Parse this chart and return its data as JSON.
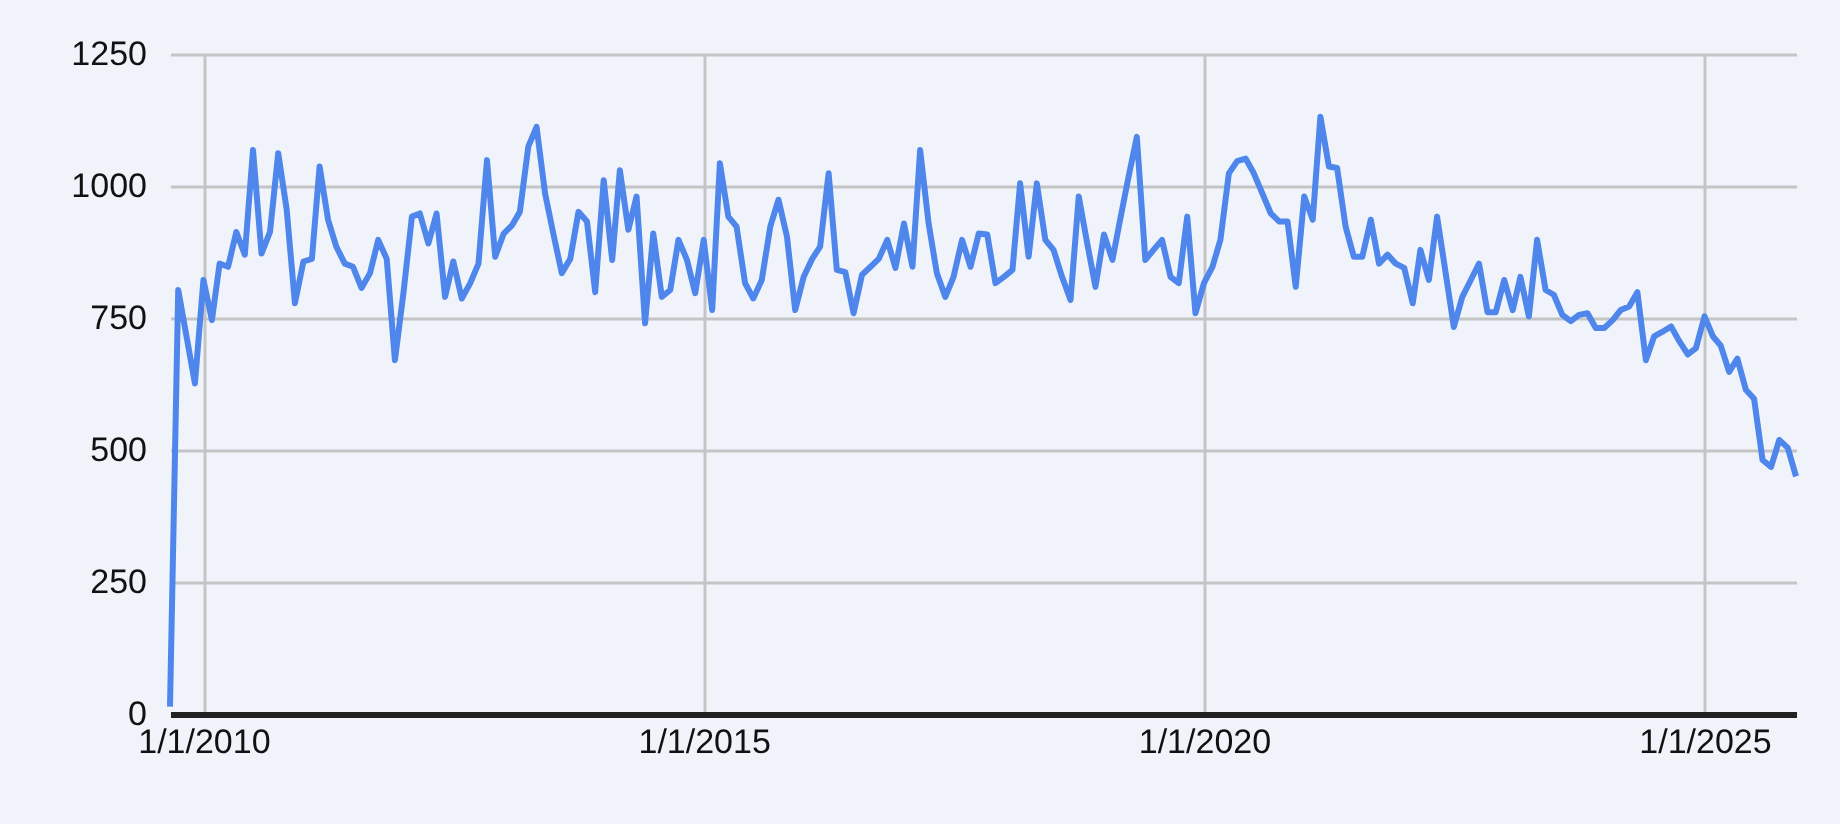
{
  "chart_data": {
    "type": "line",
    "x": [
      "2009-09",
      "2009-10",
      "2009-12",
      "2010-01",
      "2010-02",
      "2010-03",
      "2010-04",
      "2010-05",
      "2010-06",
      "2010-07",
      "2010-08",
      "2010-09",
      "2010-10",
      "2010-11",
      "2010-12",
      "2011-01",
      "2011-02",
      "2011-03",
      "2011-04",
      "2011-05",
      "2011-06",
      "2011-07",
      "2011-08",
      "2011-09",
      "2011-10",
      "2011-11",
      "2011-12",
      "2012-01",
      "2012-02",
      "2012-03",
      "2012-04",
      "2012-05",
      "2012-06",
      "2012-07",
      "2012-08",
      "2012-09",
      "2012-10",
      "2012-11",
      "2012-12",
      "2013-01",
      "2013-02",
      "2013-03",
      "2013-04",
      "2013-05",
      "2013-06",
      "2013-07",
      "2013-08",
      "2013-09",
      "2013-10",
      "2013-11",
      "2013-12",
      "2014-01",
      "2014-02",
      "2014-03",
      "2014-04",
      "2014-05",
      "2014-06",
      "2014-07",
      "2014-08",
      "2014-09",
      "2014-10",
      "2014-11",
      "2014-12",
      "2015-01",
      "2015-02",
      "2015-03",
      "2015-04",
      "2015-05",
      "2015-06",
      "2015-07",
      "2015-08",
      "2015-09",
      "2015-10",
      "2015-11",
      "2015-12",
      "2016-01",
      "2016-02",
      "2016-03",
      "2016-04",
      "2016-05",
      "2016-06",
      "2016-07",
      "2016-08",
      "2016-09",
      "2016-10",
      "2016-11",
      "2016-12",
      "2017-01",
      "2017-02",
      "2017-03",
      "2017-04",
      "2017-05",
      "2017-06",
      "2017-07",
      "2017-08",
      "2017-09",
      "2017-10",
      "2017-11",
      "2017-12",
      "2018-01",
      "2018-02",
      "2018-03",
      "2018-04",
      "2018-05",
      "2018-06",
      "2018-07",
      "2018-08",
      "2018-09",
      "2018-10",
      "2018-11",
      "2018-12",
      "2019-01",
      "2019-02",
      "2019-03",
      "2019-04",
      "2019-05",
      "2019-06",
      "2019-07",
      "2019-08",
      "2019-09",
      "2019-10",
      "2019-11",
      "2019-12",
      "2020-01",
      "2020-02",
      "2020-03",
      "2020-04",
      "2020-05",
      "2020-06",
      "2020-07",
      "2020-08",
      "2020-09",
      "2020-10",
      "2020-11",
      "2020-12",
      "2021-01",
      "2021-02",
      "2021-03",
      "2021-04",
      "2021-05",
      "2021-06",
      "2021-07",
      "2021-08",
      "2021-09",
      "2021-10",
      "2021-11",
      "2021-12",
      "2022-01",
      "2022-02",
      "2022-03",
      "2022-04",
      "2022-05",
      "2022-07",
      "2022-08",
      "2022-09",
      "2022-10",
      "2022-11",
      "2022-12",
      "2023-01",
      "2023-02",
      "2023-03",
      "2023-04",
      "2023-05",
      "2023-06",
      "2023-07",
      "2023-08",
      "2023-09",
      "2023-10",
      "2023-11",
      "2023-12",
      "2024-01",
      "2024-02",
      "2024-03",
      "2024-04",
      "2024-05",
      "2024-06",
      "2024-07",
      "2024-08",
      "2024-09",
      "2024-10",
      "2024-11",
      "2024-12",
      "2025-01",
      "2025-02",
      "2025-03",
      "2025-04",
      "2025-05",
      "2025-06",
      "2025-07",
      "2025-08",
      "2025-09",
      "2025-10",
      "2025-11",
      "2025-12"
    ],
    "series": [
      {
        "color": "#4f86ec",
        "values": [
          14,
          803,
          626,
          822,
          746,
          853,
          847,
          913,
          870,
          1068,
          872,
          913,
          1062,
          955,
          778,
          857,
          862,
          1037,
          936,
          885,
          853,
          847,
          807,
          835,
          898,
          862,
          670,
          797,
          942,
          948,
          891,
          948,
          790,
          857,
          787,
          816,
          853,
          1049,
          866,
          910,
          926,
          951,
          1075,
          1112,
          986,
          910,
          835,
          862,
          951,
          933,
          799,
          1011,
          860,
          1030,
          917,
          980,
          740,
          910,
          790,
          803,
          898,
          860,
          797,
          898,
          765,
          1043,
          942,
          923,
          816,
          787,
          822,
          923,
          974,
          904,
          765,
          828,
          862,
          885,
          1024,
          841,
          837,
          759,
          832,
          847,
          862,
          898,
          845,
          929,
          847,
          1068,
          929,
          835,
          790,
          828,
          898,
          847,
          910,
          908,
          816,
          828,
          841,
          1005,
          866,
          1005,
          898,
          879,
          828,
          784,
          980,
          891,
          809,
          908,
          860,
          936,
          1018,
          1093,
          860,
          879,
          898,
          828,
          816,
          942,
          759,
          816,
          847,
          898,
          1024,
          1047,
          1052,
          1024,
          986,
          948,
          933,
          933,
          809,
          980,
          936,
          1131,
          1037,
          1034,
          923,
          866,
          866,
          936,
          853,
          870,
          853,
          845,
          778,
          879,
          822,
          942,
          733,
          790,
          822,
          853,
          761,
          761,
          822,
          765,
          828,
          753,
          898,
          803,
          794,
          756,
          744,
          756,
          759,
          731,
          731,
          746,
          765,
          772,
          799,
          670,
          715,
          724,
          734,
          706,
          681,
          693,
          753,
          715,
          698,
          648,
          673,
          614,
          597,
          481,
          468,
          519,
          504,
          450
        ]
      }
    ],
    "xlim": [
      "2009-09",
      "2025-12"
    ],
    "xticks": [
      {
        "value": "2010-01-01",
        "label": "1/1/2010"
      },
      {
        "value": "2015-01-01",
        "label": "1/1/2015"
      },
      {
        "value": "2020-01-01",
        "label": "1/1/2020"
      },
      {
        "value": "2025-01-01",
        "label": "1/1/2025"
      }
    ],
    "ylim": [
      0,
      1250
    ],
    "yticks": [
      0,
      250,
      500,
      750,
      1000,
      1250
    ],
    "grid": true,
    "marker": "none",
    "line_style": "solid"
  }
}
